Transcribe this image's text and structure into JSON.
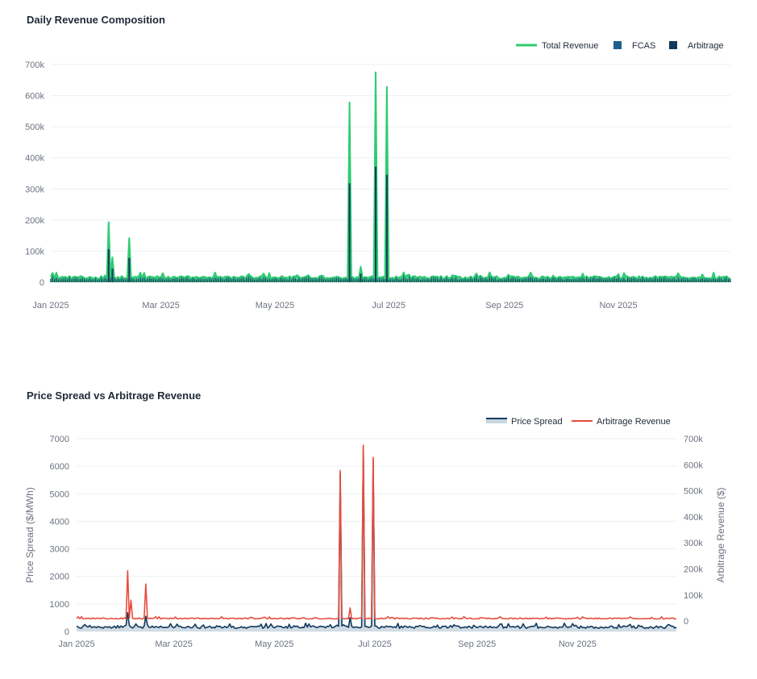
{
  "chart_data": [
    {
      "type": "area",
      "title": "Daily Revenue Composition",
      "x_range": [
        "2025-01-01",
        "2025-12-31"
      ],
      "x_ticks": [
        "Jan 2025",
        "Mar 2025",
        "May 2025",
        "Jul 2025",
        "Sep 2025",
        "Nov 2025"
      ],
      "y_ticks": [
        "0",
        "100k",
        "200k",
        "300k",
        "400k",
        "500k",
        "600k",
        "700k"
      ],
      "ylim": [
        0,
        700000
      ],
      "legend_placement": "top-right",
      "grid": true,
      "series": [
        {
          "name": "Total Revenue",
          "style": "line-area",
          "color": "#2ecc71",
          "baseline": 20000,
          "peaks": [
            {
              "x": "2025-02-01",
              "y": 193000
            },
            {
              "x": "2025-02-03",
              "y": 80000
            },
            {
              "x": "2025-02-12",
              "y": 142000
            },
            {
              "x": "2025-06-10",
              "y": 578000
            },
            {
              "x": "2025-06-16",
              "y": 50000
            },
            {
              "x": "2025-06-24",
              "y": 675000
            },
            {
              "x": "2025-06-30",
              "y": 628000
            }
          ]
        },
        {
          "name": "FCAS",
          "style": "bar",
          "color": "#1f5f8b",
          "baseline": 14000
        },
        {
          "name": "Arbitrage",
          "style": "bar",
          "color": "#12395b",
          "baseline": 12000
        }
      ]
    },
    {
      "type": "line",
      "title": "Price Spread vs Arbitrage Revenue",
      "x_range": [
        "2025-01-01",
        "2025-12-31"
      ],
      "x_ticks": [
        "Jan 2025",
        "Mar 2025",
        "May 2025",
        "Jul 2025",
        "Sep 2025",
        "Nov 2025"
      ],
      "y_left": {
        "label": "Price Spread ($/MWh)",
        "ticks": [
          "0",
          "1000",
          "2000",
          "3000",
          "4000",
          "5000",
          "6000",
          "7000"
        ],
        "lim": [
          0,
          7000
        ]
      },
      "y_right": {
        "label": "Arbitrage Revenue ($)",
        "ticks": [
          "0",
          "100k",
          "200k",
          "300k",
          "400k",
          "500k",
          "600k",
          "700k"
        ],
        "lim": [
          -40000,
          700000
        ]
      },
      "legend_placement": "top-right",
      "grid": true,
      "series": [
        {
          "name": "Price Spread",
          "axis": "left",
          "style": "line-area",
          "color": "#12395b",
          "fill": "#c9d6e0",
          "baseline": 200,
          "peaks": [
            {
              "x": "2025-02-01",
              "y": 680
            },
            {
              "x": "2025-02-12",
              "y": 550
            },
            {
              "x": "2025-06-10",
              "y": 5750
            },
            {
              "x": "2025-06-16",
              "y": 500
            },
            {
              "x": "2025-06-24",
              "y": 6700
            },
            {
              "x": "2025-06-30",
              "y": 6250
            }
          ]
        },
        {
          "name": "Arbitrage Revenue",
          "axis": "right",
          "style": "line",
          "color": "#e74c3c",
          "baseline": 12000,
          "peaks": [
            {
              "x": "2025-02-01",
              "y": 193000
            },
            {
              "x": "2025-02-03",
              "y": 80000
            },
            {
              "x": "2025-02-12",
              "y": 142000
            },
            {
              "x": "2025-06-10",
              "y": 578000
            },
            {
              "x": "2025-06-16",
              "y": 50000
            },
            {
              "x": "2025-06-24",
              "y": 675000
            },
            {
              "x": "2025-06-30",
              "y": 628000
            }
          ]
        }
      ]
    }
  ]
}
